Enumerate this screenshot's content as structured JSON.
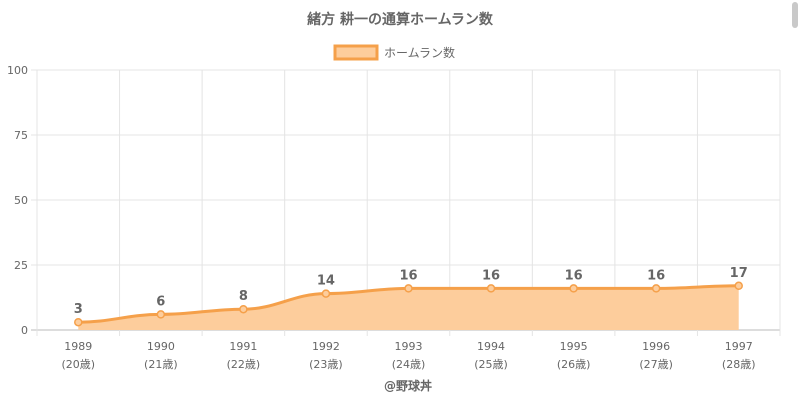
{
  "chart_data": {
    "type": "area",
    "title": "緒方 耕一の通算ホームラン数",
    "legend": {
      "label": "ホームラン数",
      "position": "top"
    },
    "categories": [
      "1989",
      "1990",
      "1991",
      "1992",
      "1993",
      "1994",
      "1995",
      "1996",
      "1997"
    ],
    "sublabels": [
      "(20歳)",
      "(21歳)",
      "(22歳)",
      "(23歳)",
      "(24歳)",
      "(25歳)",
      "(26歳)",
      "(27歳)",
      "(28歳)"
    ],
    "series": [
      {
        "name": "ホームラン数",
        "values": [
          3,
          6,
          8,
          14,
          16,
          16,
          16,
          16,
          17
        ]
      }
    ],
    "ylim": [
      0,
      100
    ],
    "yticks": [
      0,
      25,
      50,
      75,
      100
    ],
    "grid": true,
    "colors": {
      "line": "#f5a04a",
      "fill": "#fdcd9c",
      "grid": "#e4e4e4",
      "text": "#666666"
    }
  },
  "footer": {
    "credit": "@野球丼"
  }
}
